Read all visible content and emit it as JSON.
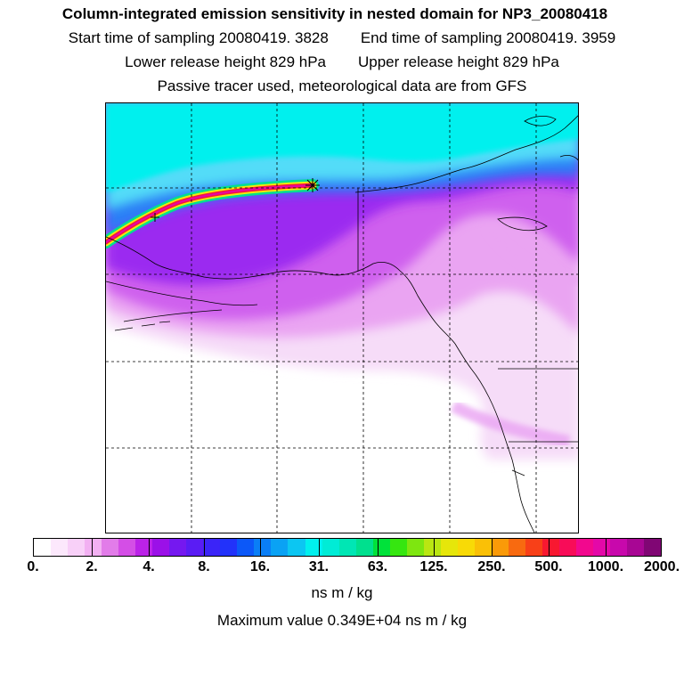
{
  "header": {
    "title": "Column-integrated emission sensitivity in nested domain for NP3_20080418",
    "start_label": "Start time of sampling 20080419.  3828",
    "end_label": "End time of sampling 20080419.  3959",
    "lower_label": "Lower release height  829 hPa",
    "upper_label": "Upper release height  829 hPa",
    "note": "Passive tracer used, meteorological data are from GFS"
  },
  "colorbar": {
    "tick_labels": [
      "0.",
      "2.",
      "4.",
      "8.",
      "16.",
      "31.",
      "63.",
      "125.",
      "250.",
      "500.",
      "1000.",
      "2000."
    ],
    "colors": [
      "#ffffff",
      "#fce8fc",
      "#f8d0f8",
      "#f2b0f2",
      "#e27ce9",
      "#d44ee6",
      "#bb22e8",
      "#9b10e8",
      "#7518f0",
      "#5a1cf4",
      "#3b24f8",
      "#2232fa",
      "#0c58f8",
      "#0a7ef6",
      "#0aa2f4",
      "#0cc6f2",
      "#00f0ee",
      "#00ecd6",
      "#00e6b4",
      "#00e08e",
      "#00e23a",
      "#36e610",
      "#7ee610",
      "#bae612",
      "#e6e60a",
      "#f8da06",
      "#fac006",
      "#fa9a08",
      "#f86a10",
      "#f84018",
      "#f81830",
      "#f80c58",
      "#f2088e",
      "#e408a8",
      "#c808ac",
      "#a80694",
      "#800674"
    ],
    "units": "ns m / kg",
    "max_value_label": "Maximum value  0.349E+04 ns m / kg"
  },
  "map": {
    "release_marker": "star",
    "colors": {
      "cyan": "#00f0ee",
      "light_blue": "#52dcf8",
      "blue": "#2a7ef6",
      "violet": "#9b2cf0",
      "magenta": "#cf60ee",
      "pink": "#eaa4f2",
      "pale_pink": "#f6dcf8",
      "plume_red": "#f8143c",
      "plume_yellow": "#f4e80a"
    }
  }
}
